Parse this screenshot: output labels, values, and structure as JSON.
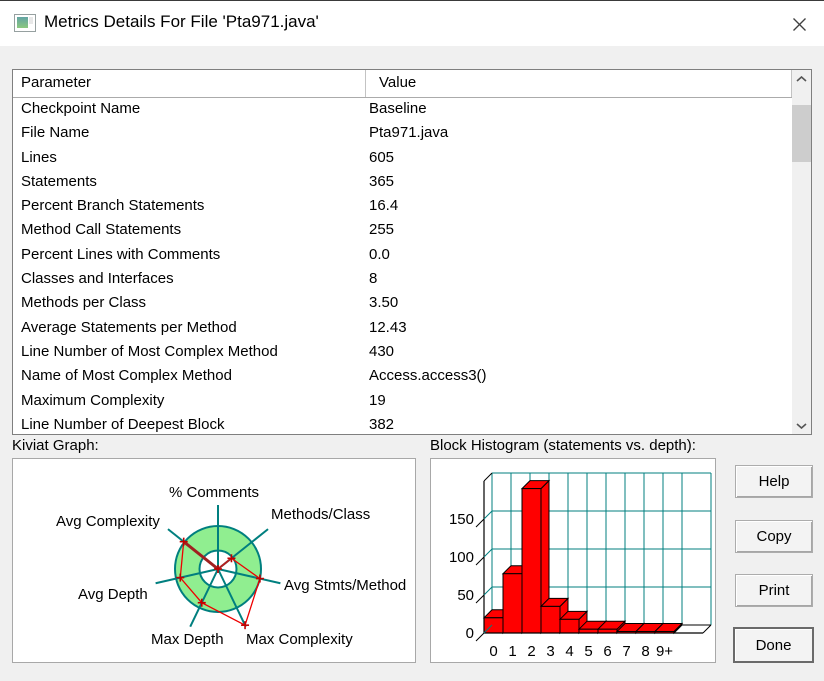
{
  "window": {
    "title": "Metrics Details For File 'Pta971.java'"
  },
  "table": {
    "columns": [
      "Parameter",
      "Value"
    ],
    "rows": [
      {
        "param": "Checkpoint Name",
        "value": "Baseline"
      },
      {
        "param": "File Name",
        "value": "Pta971.java"
      },
      {
        "param": "Lines",
        "value": "605"
      },
      {
        "param": "Statements",
        "value": "365"
      },
      {
        "param": "Percent Branch Statements",
        "value": "16.4"
      },
      {
        "param": "Method Call Statements",
        "value": "255"
      },
      {
        "param": "Percent Lines with Comments",
        "value": "0.0"
      },
      {
        "param": "Classes and Interfaces",
        "value": "8"
      },
      {
        "param": "Methods per Class",
        "value": "3.50"
      },
      {
        "param": "Average Statements per Method",
        "value": "12.43"
      },
      {
        "param": "Line Number of Most Complex Method",
        "value": "430"
      },
      {
        "param": "Name of Most Complex Method",
        "value": "Access.access3()"
      },
      {
        "param": "Maximum Complexity",
        "value": "19"
      },
      {
        "param": "Line Number of Deepest Block",
        "value": "382"
      }
    ]
  },
  "sections": {
    "kiviat_label": "Kiviat Graph:",
    "histogram_label": "Block Histogram (statements vs. depth):"
  },
  "buttons": [
    "Help",
    "Copy",
    "Print",
    "Done"
  ],
  "colors": {
    "teal_axis": "#007F7F",
    "ring_green": "#90EE90",
    "data_red": "#FF0000",
    "dialog_bg": "#F0F0F0"
  },
  "chart_data": [
    {
      "type": "radar",
      "title": "Kiviat Graph",
      "axes": [
        "% Comments",
        "Methods/Class",
        "Avg Stmts/Method",
        "Max Complexity",
        "Max Depth",
        "Avg Depth",
        "Avg Complexity"
      ],
      "values_fraction_of_outer_ring": [
        0.0,
        0.4,
        1.0,
        1.45,
        0.87,
        0.9,
        1.02
      ],
      "rings": {
        "inner_radius_fraction": 0.43,
        "outer_radius_fraction": 1.0
      },
      "colors": {
        "ring_fill": "#90EE90",
        "axis": "#007F7F",
        "data": "#EE0000"
      }
    },
    {
      "type": "bar",
      "title": "Block Histogram (statements vs. depth)",
      "categories": [
        "0",
        "1",
        "2",
        "3",
        "4",
        "5",
        "6",
        "7",
        "8",
        "9+"
      ],
      "values": [
        20,
        78,
        190,
        35,
        18,
        5,
        5,
        2,
        2,
        2
      ],
      "yticks": [
        0,
        50,
        100,
        150
      ],
      "ylim": [
        0,
        200
      ],
      "grid": true,
      "style": "3d",
      "bar_color": "#FF0000",
      "grid_color": "#007F7F"
    }
  ]
}
